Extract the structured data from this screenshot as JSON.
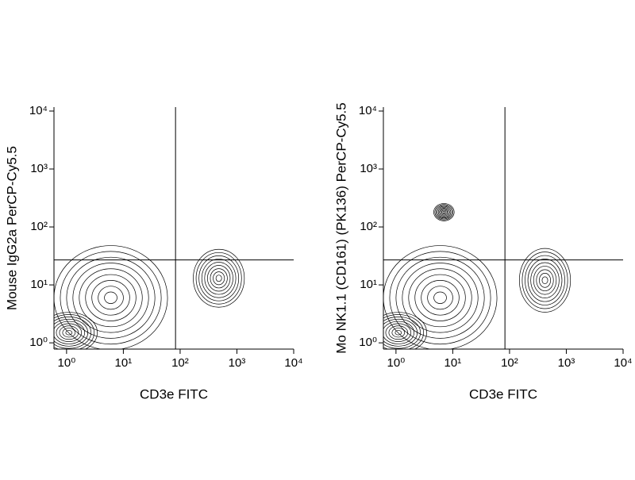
{
  "chart_data": [
    {
      "type": "contour",
      "x_label": "CD3e FITC",
      "y_label": "Mouse IgG2a PerCP-Cy5.5",
      "log_x": true,
      "log_y": true,
      "color": "#000000",
      "levels": 9,
      "xlim": [
        0.6,
        10000
      ],
      "ylim": [
        0.78,
        11700
      ],
      "xticks": [
        {
          "value": 1,
          "label": "10⁰"
        },
        {
          "value": 10,
          "label": "10¹"
        },
        {
          "value": 100,
          "label": "10²"
        },
        {
          "value": 1000,
          "label": "10³"
        },
        {
          "value": 10000,
          "label": "10⁴"
        }
      ],
      "yticks": [
        {
          "value": 1,
          "label": "10⁰"
        },
        {
          "value": 10,
          "label": "10¹"
        },
        {
          "value": 100,
          "label": "10²"
        },
        {
          "value": 1000,
          "label": "10³"
        },
        {
          "value": 10000,
          "label": "10⁴"
        }
      ],
      "gate_x": 83,
      "gate_y": 27,
      "clusters": [
        {
          "x": 6,
          "y": 6,
          "x_spread": 1.0,
          "y_spread": 0.9
        },
        {
          "x": 1.1,
          "y": 1.5,
          "x_spread": 0.5,
          "y_spread": 0.35
        },
        {
          "x": 480,
          "y": 13,
          "x_spread": 0.45,
          "y_spread": 0.5
        }
      ]
    },
    {
      "type": "contour",
      "x_label": "CD3e FITC",
      "y_label": "Mo NK1.1 (CD161) (PK136) PerCP-Cy5.5",
      "log_x": true,
      "log_y": true,
      "color": "#000000",
      "levels": 9,
      "xlim": [
        0.6,
        10000
      ],
      "ylim": [
        0.78,
        11700
      ],
      "xticks": [
        {
          "value": 1,
          "label": "10⁰"
        },
        {
          "value": 10,
          "label": "10¹"
        },
        {
          "value": 100,
          "label": "10²"
        },
        {
          "value": 1000,
          "label": "10³"
        },
        {
          "value": 10000,
          "label": "10⁴"
        }
      ],
      "yticks": [
        {
          "value": 1,
          "label": "10⁰"
        },
        {
          "value": 10,
          "label": "10¹"
        },
        {
          "value": 100,
          "label": "10²"
        },
        {
          "value": 1000,
          "label": "10³"
        },
        {
          "value": 10000,
          "label": "10⁴"
        }
      ],
      "gate_x": 83,
      "gate_y": 27,
      "clusters": [
        {
          "x": 6,
          "y": 6,
          "x_spread": 1.0,
          "y_spread": 0.9
        },
        {
          "x": 1.1,
          "y": 1.5,
          "x_spread": 0.5,
          "y_spread": 0.35
        },
        {
          "x": 420,
          "y": 12,
          "x_spread": 0.45,
          "y_spread": 0.55
        },
        {
          "x": 7,
          "y": 180,
          "x_spread": 0.18,
          "y_spread": 0.15
        }
      ]
    }
  ]
}
